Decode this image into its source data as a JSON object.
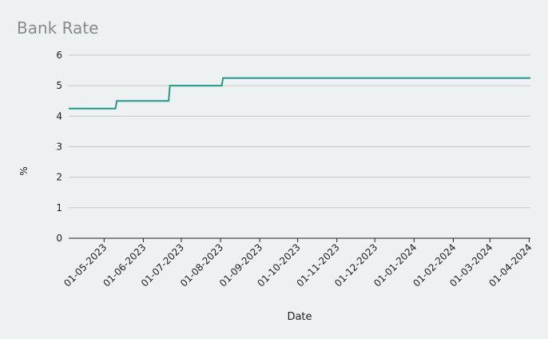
{
  "chart_data": {
    "type": "line",
    "title": "Bank Rate",
    "x_label": "Date",
    "y_label": "%",
    "x": [
      "03-04-2023",
      "10-05-2023",
      "11-05-2023",
      "21-06-2023",
      "22-06-2023",
      "02-08-2023",
      "03-08-2023",
      "02-04-2024"
    ],
    "series": [
      {
        "name": "Bank Rate",
        "color": "#23998a",
        "values": [
          4.25,
          4.25,
          4.5,
          4.5,
          5,
          5,
          5.25,
          5.25
        ]
      }
    ],
    "xlim": [
      "03-04-2023",
      "02-04-2024"
    ],
    "xticks": [
      "01-05-2023",
      "01-06-2023",
      "01-07-2023",
      "01-08-2023",
      "01-09-2023",
      "01-10-2023",
      "01-11-2023",
      "01-12-2023",
      "01-01-2024",
      "01-02-2024",
      "01-03-2024",
      "01-04-2024"
    ],
    "ylim": [
      0,
      6
    ],
    "yticks": [
      0,
      1,
      2,
      3,
      4,
      5,
      6
    ],
    "grid": true
  }
}
